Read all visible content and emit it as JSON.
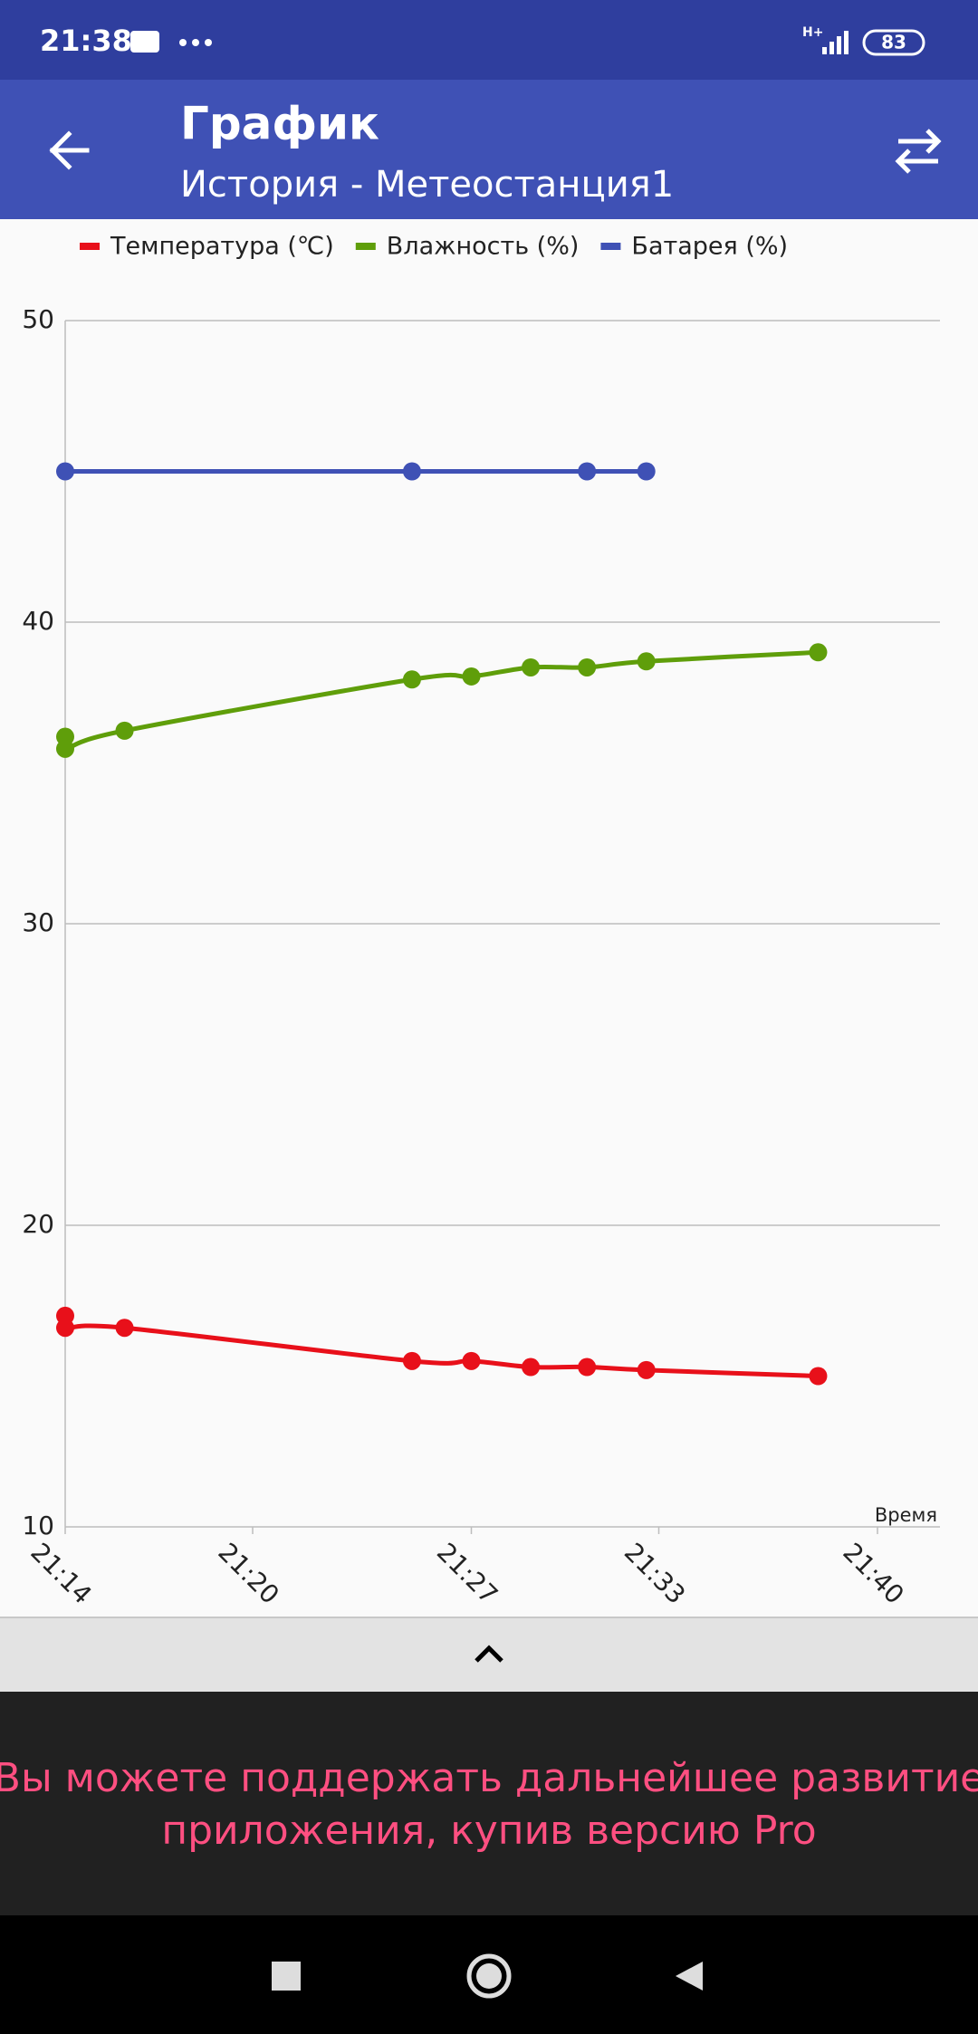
{
  "status_bar": {
    "time": "21:38",
    "network": "H+",
    "battery": "83"
  },
  "app_bar": {
    "title": "График",
    "subtitle": "История - Метеостанция1"
  },
  "chart_data": {
    "type": "line",
    "x_label": "Время",
    "legend_position": "top-left",
    "grid": true,
    "xlim": [
      1274,
      1302
    ],
    "xticks": [
      {
        "value": 1274,
        "label": "21:14"
      },
      {
        "value": 1280,
        "label": "21:20"
      },
      {
        "value": 1287,
        "label": "21:27"
      },
      {
        "value": 1293,
        "label": "21:33"
      },
      {
        "value": 1300,
        "label": "21:40"
      }
    ],
    "ylim": [
      10,
      50
    ],
    "yticks": [
      10,
      20,
      30,
      40,
      50
    ],
    "series": [
      {
        "name": "Температура (℃)",
        "color": "#e8101a",
        "x": [
          1274,
          1274,
          1275.9,
          1285.1,
          1287,
          1288.9,
          1290.7,
          1292.6,
          1298.1
        ],
        "values": [
          17.0,
          16.6,
          16.6,
          15.5,
          15.5,
          15.3,
          15.3,
          15.2,
          15.0
        ]
      },
      {
        "name": "Влажность (%)",
        "color": "#5f9e0a",
        "x": [
          1274,
          1274,
          1275.9,
          1285.1,
          1287,
          1288.9,
          1290.7,
          1292.6,
          1298.1
        ],
        "values": [
          36.2,
          35.8,
          36.4,
          38.1,
          38.2,
          38.5,
          38.5,
          38.7,
          39.0
        ]
      },
      {
        "name": "Батарея (%)",
        "color": "#3f51b5",
        "x": [
          1274,
          1285.1,
          1290.7,
          1292.6
        ],
        "values": [
          45,
          45,
          45,
          45
        ]
      }
    ]
  },
  "ad_banner": {
    "lines": [
      "Вы можете поддержать дальнейшее развитие",
      "приложения, купив версию Pro"
    ]
  }
}
